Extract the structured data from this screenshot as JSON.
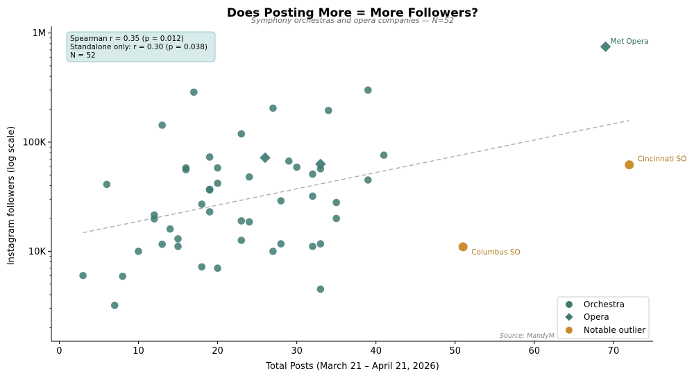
{
  "chart_data": {
    "type": "scatter",
    "title": "Does Posting More = More Followers?",
    "subtitle": "Symphony orchestras and opera companies — N=52",
    "xlabel": "Total Posts (March 21 – April 21, 2026)",
    "ylabel": "Instagram followers (log scale)",
    "xlim": [
      -1,
      75
    ],
    "ylim": [
      1500,
      1150000
    ],
    "y_scale": "log",
    "x_ticks": [
      0,
      10,
      20,
      30,
      40,
      50,
      60,
      70
    ],
    "y_ticks": [
      {
        "value": 10000,
        "label": "10K"
      },
      {
        "value": 100000,
        "label": "100K"
      },
      {
        "value": 1000000,
        "label": "1M"
      }
    ],
    "stats_box": [
      "Spearman r = 0.35  (p = 0.012)",
      "Standalone only:  r = 0.30  (p = 0.038)",
      "N = 52"
    ],
    "trendline": {
      "x": [
        3,
        72
      ],
      "y": [
        14800,
        158000
      ]
    },
    "colors": {
      "orchestra": "#3e7a72",
      "opera": "#3e7a72",
      "outlier": "#c98a26",
      "trend": "#b0b0b0",
      "opera_label": "#2e6b5e",
      "outlier_label": "#b07d1e"
    },
    "legend": {
      "position": "bottom-right",
      "entries": [
        {
          "label": "Orchestra",
          "marker": "circle"
        },
        {
          "label": "Opera",
          "marker": "diamond"
        },
        {
          "label": "Notable outlier",
          "marker": "circle-orange"
        }
      ]
    },
    "series": [
      {
        "name": "Orchestra",
        "points": [
          [
            3,
            6000
          ],
          [
            6,
            41000
          ],
          [
            7,
            3200
          ],
          [
            8,
            5900
          ],
          [
            10,
            10000
          ],
          [
            12,
            21500
          ],
          [
            12,
            19800
          ],
          [
            13,
            11600
          ],
          [
            13,
            143000
          ],
          [
            14,
            16000
          ],
          [
            15,
            13000
          ],
          [
            15,
            11100
          ],
          [
            16,
            58000
          ],
          [
            16,
            56000
          ],
          [
            17,
            287000
          ],
          [
            18,
            27000
          ],
          [
            18,
            7200
          ],
          [
            19,
            73000
          ],
          [
            19,
            37000
          ],
          [
            19,
            36500
          ],
          [
            19,
            23000
          ],
          [
            20,
            58000
          ],
          [
            20,
            42000
          ],
          [
            20,
            7000
          ],
          [
            23,
            119000
          ],
          [
            23,
            19000
          ],
          [
            23,
            12600
          ],
          [
            24,
            48000
          ],
          [
            24,
            18600
          ],
          [
            27,
            205000
          ],
          [
            27,
            10000
          ],
          [
            28,
            29000
          ],
          [
            28,
            11700
          ],
          [
            29,
            67000
          ],
          [
            30,
            59000
          ],
          [
            32,
            51000
          ],
          [
            32,
            32000
          ],
          [
            32,
            11100
          ],
          [
            33,
            57000
          ],
          [
            33,
            11700
          ],
          [
            33,
            4500
          ],
          [
            34,
            195000
          ],
          [
            35,
            28000
          ],
          [
            35,
            20000
          ],
          [
            39,
            300000
          ],
          [
            39,
            45000
          ],
          [
            41,
            76000
          ]
        ]
      },
      {
        "name": "Opera",
        "points": [
          [
            26,
            72000
          ],
          [
            33,
            63000
          ],
          [
            69,
            750000
          ]
        ]
      },
      {
        "name": "Notable outlier",
        "points": [
          [
            51,
            11000
          ],
          [
            72,
            62000
          ]
        ]
      }
    ],
    "annotations": [
      {
        "text": "Met Opera",
        "x": 69,
        "y": 750000,
        "kind": "opera"
      },
      {
        "text": "Cincinnati SO",
        "x": 72,
        "y": 62000,
        "kind": "outlier"
      },
      {
        "text": "Columbus SO",
        "x": 51,
        "y": 11000,
        "kind": "outlier"
      }
    ],
    "source": "Source: MandyM"
  }
}
